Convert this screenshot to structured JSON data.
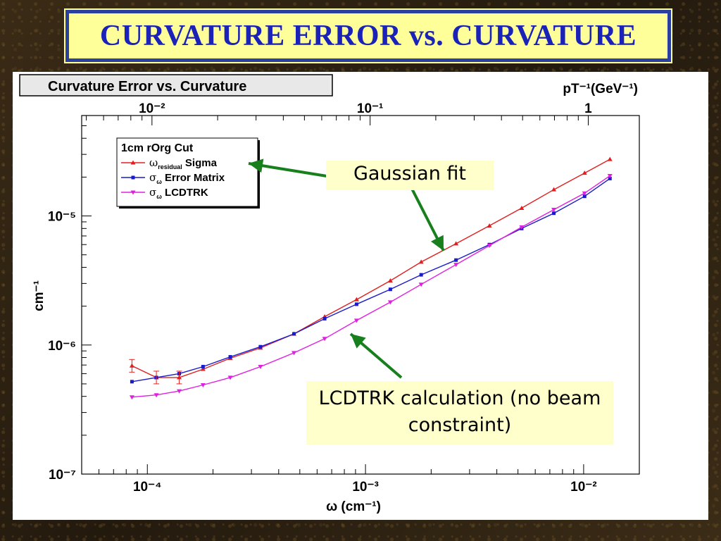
{
  "slide": {
    "title": "CURVATURE ERROR vs. CURVATURE"
  },
  "callouts": {
    "gaussian": "Gaussian fit",
    "lcdtrk": "LCDTRK calculation (no beam constraint)"
  },
  "colors": {
    "title_text": "#1a22b8",
    "title_border": "#2b3f9e",
    "callout_bg": "#ffffcc",
    "arrow": "#17801c"
  },
  "chart_data": {
    "type": "line",
    "title": "Curvature Error vs. Curvature",
    "xlabel": "ω (cm⁻¹)",
    "ylabel": "cm⁻¹",
    "top_axis_label": "pT⁻¹(GeV⁻¹)",
    "x_scale": "log",
    "y_scale": "log",
    "xlim": [
      5e-05,
      0.018
    ],
    "ylim": [
      1e-07,
      6e-05
    ],
    "x_ticks": [
      {
        "value": 0.0001,
        "label": "10⁻⁴"
      },
      {
        "value": 0.001,
        "label": "10⁻³"
      },
      {
        "value": 0.01,
        "label": "10⁻²"
      }
    ],
    "y_ticks": [
      {
        "value": 1e-07,
        "label": "10⁻⁷"
      },
      {
        "value": 1e-06,
        "label": "10⁻⁶"
      },
      {
        "value": 1e-05,
        "label": "10⁻⁵"
      }
    ],
    "top_ticks": [
      {
        "value": 0.01,
        "label": "10⁻²"
      },
      {
        "value": 0.1,
        "label": "10⁻¹"
      },
      {
        "value": 1,
        "label": "1"
      }
    ],
    "top_to_bottom_factor": 0.0105,
    "grid": true,
    "legend_position": "top-left",
    "legend_header": "1cm rOrg Cut",
    "series": [
      {
        "name": "ω_residual Sigma",
        "legend_main": "ω",
        "legend_sub": "residual",
        "legend_text": "Sigma",
        "color": "#e02020",
        "marker": "tri",
        "x": [
          8.5e-05,
          0.00011,
          0.00014,
          0.00018,
          0.00024,
          0.00033,
          0.00047,
          0.00065,
          0.00091,
          0.0013,
          0.0018,
          0.0026,
          0.0037,
          0.0052,
          0.0073,
          0.0101,
          0.0132
        ],
        "y": [
          6.9e-07,
          5.6e-07,
          5.6e-07,
          6.5e-07,
          7.9e-07,
          9.5e-07,
          1.22e-06,
          1.66e-06,
          2.25e-06,
          3.15e-06,
          4.4e-06,
          6.1e-06,
          8.4e-06,
          1.15e-05,
          1.6e-05,
          2.15e-05,
          2.75e-05
        ]
      },
      {
        "name": "σ_ω Error Matrix",
        "legend_main": "σ",
        "legend_sub": "ω",
        "legend_text": "Error Matrix",
        "color": "#1a1acc",
        "marker": "square",
        "x": [
          8.5e-05,
          0.00011,
          0.00014,
          0.00018,
          0.00024,
          0.00033,
          0.00047,
          0.00065,
          0.00091,
          0.0013,
          0.0018,
          0.0026,
          0.0037,
          0.0052,
          0.0073,
          0.0101,
          0.0132
        ],
        "y": [
          5.2e-07,
          5.6e-07,
          6e-07,
          6.8e-07,
          8.1e-07,
          9.7e-07,
          1.22e-06,
          1.6e-06,
          2.07e-06,
          2.7e-06,
          3.5e-06,
          4.55e-06,
          6e-06,
          8e-06,
          1.05e-05,
          1.42e-05,
          1.95e-05
        ]
      },
      {
        "name": "σ_ω LCDTRK",
        "legend_main": "σ",
        "legend_sub": "ω",
        "legend_text": "LCDTRK",
        "color": "#e020e0",
        "marker": "tridown",
        "x": [
          8.5e-05,
          0.00011,
          0.00014,
          0.00018,
          0.00024,
          0.00033,
          0.00047,
          0.00065,
          0.00091,
          0.0013,
          0.0018,
          0.0026,
          0.0037,
          0.0052,
          0.0073,
          0.0101,
          0.0132
        ],
        "y": [
          3.95e-07,
          4.1e-07,
          4.4e-07,
          4.9e-07,
          5.6e-07,
          6.8e-07,
          8.7e-07,
          1.12e-06,
          1.55e-06,
          2.15e-06,
          2.95e-06,
          4.2e-06,
          5.9e-06,
          8.2e-06,
          1.12e-05,
          1.5e-05,
          2.05e-05
        ]
      }
    ]
  }
}
